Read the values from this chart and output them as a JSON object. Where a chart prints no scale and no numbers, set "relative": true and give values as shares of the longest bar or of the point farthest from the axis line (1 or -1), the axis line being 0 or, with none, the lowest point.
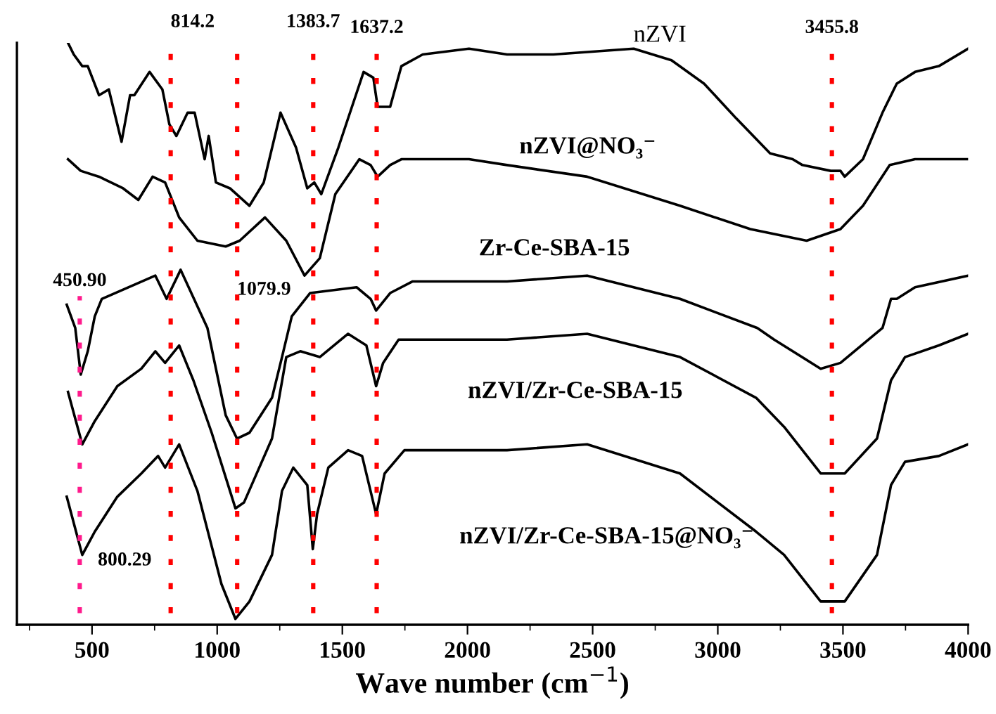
{
  "chart_data": {
    "type": "line",
    "relative": true,
    "xlabel": "Wave number (cm$^{−1}$)",
    "xlim": [
      200,
      4000
    ],
    "xticks": [
      {
        "value": 250,
        "label": null
      },
      500,
      {
        "value": 750,
        "label": null
      },
      1000,
      {
        "value": 1250,
        "label": null
      },
      1500,
      {
        "value": 1750,
        "label": null
      },
      2000,
      {
        "value": 2250,
        "label": null
      },
      2500,
      {
        "value": 2750,
        "label": null
      },
      3000,
      {
        "value": 3250,
        "label": null
      },
      3500,
      {
        "value": 3750,
        "label": null
      },
      4000
    ],
    "series": [
      {
        "name": "nZVI",
        "color": "#000000",
        "x": [
          404,
          427,
          461,
          483,
          528,
          567,
          618,
          652,
          669,
          730,
          781,
          809,
          837,
          882,
          910,
          950,
          966,
          995,
          1051,
          1129,
          1186,
          1253,
          1315,
          1360,
          1388,
          1416,
          1484,
          1585,
          1624,
          1641,
          1691,
          1736,
          1821,
          2006,
          2158,
          2343,
          2664,
          2815,
          2945,
          3074,
          3209,
          3299,
          3338,
          3451,
          3490,
          3507,
          3580,
          3658,
          3715,
          3788,
          3883,
          4000
        ],
        "values": [
          1.0,
          0.98,
          0.96,
          0.96,
          0.91,
          0.92,
          0.83,
          0.91,
          0.91,
          0.95,
          0.92,
          0.86,
          0.84,
          0.88,
          0.88,
          0.8,
          0.84,
          0.76,
          0.75,
          0.72,
          0.76,
          0.88,
          0.82,
          0.75,
          0.76,
          0.74,
          0.82,
          0.95,
          0.94,
          0.89,
          0.89,
          0.96,
          0.98,
          0.99,
          0.98,
          0.98,
          0.99,
          0.97,
          0.93,
          0.87,
          0.81,
          0.8,
          0.79,
          0.78,
          0.78,
          0.77,
          0.8,
          0.88,
          0.93,
          0.95,
          0.96,
          0.99
        ]
      },
      {
        "name": "nZVI@NO₃⁻",
        "color": "#000000",
        "x": [
          404,
          455,
          528,
          624,
          685,
          742,
          792,
          848,
          921,
          1034,
          1090,
          1191,
          1276,
          1349,
          1410,
          1472,
          1568,
          1613,
          1641,
          1691,
          1736,
          2006,
          2158,
          2478,
          2849,
          3130,
          3355,
          3490,
          3580,
          3687,
          3788,
          4000
        ],
        "values": [
          0.8,
          0.78,
          0.77,
          0.75,
          0.73,
          0.77,
          0.76,
          0.7,
          0.66,
          0.65,
          0.66,
          0.7,
          0.66,
          0.6,
          0.63,
          0.74,
          0.8,
          0.79,
          0.77,
          0.79,
          0.8,
          0.8,
          0.79,
          0.77,
          0.72,
          0.68,
          0.66,
          0.68,
          0.72,
          0.79,
          0.8,
          0.8
        ]
      },
      {
        "name": "Zr-Ce-SBA-15",
        "color": "#000000",
        "x": [
          399,
          433,
          455,
          483,
          511,
          539,
          753,
          798,
          854,
          961,
          995,
          1034,
          1079,
          1129,
          1219,
          1259,
          1298,
          1371,
          1557,
          1613,
          1635,
          1691,
          1781,
          2158,
          2478,
          2849,
          3158,
          3225,
          3411,
          3490,
          3658,
          3692,
          3715,
          3788,
          4000
        ],
        "values": [
          0.55,
          0.51,
          0.43,
          0.47,
          0.53,
          0.56,
          0.6,
          0.56,
          0.61,
          0.51,
          0.44,
          0.36,
          0.32,
          0.33,
          0.39,
          0.46,
          0.53,
          0.57,
          0.58,
          0.56,
          0.54,
          0.57,
          0.59,
          0.59,
          0.6,
          0.56,
          0.51,
          0.49,
          0.44,
          0.45,
          0.51,
          0.56,
          0.56,
          0.58,
          0.6
        ]
      },
      {
        "name": "nZVI/Zr-Ce-SBA-15",
        "color": "#000000",
        "x": [
          404,
          461,
          511,
          601,
          697,
          753,
          792,
          848,
          905,
          978,
          1073,
          1107,
          1219,
          1276,
          1332,
          1410,
          1523,
          1596,
          1635,
          1663,
          1725,
          2158,
          2478,
          2849,
          3153,
          3265,
          3411,
          3507,
          3636,
          3692,
          3748,
          3883,
          4000
        ],
        "values": [
          0.4,
          0.31,
          0.35,
          0.41,
          0.44,
          0.47,
          0.45,
          0.48,
          0.42,
          0.33,
          0.2,
          0.21,
          0.32,
          0.46,
          0.47,
          0.46,
          0.5,
          0.48,
          0.41,
          0.45,
          0.49,
          0.49,
          0.5,
          0.46,
          0.39,
          0.34,
          0.26,
          0.26,
          0.32,
          0.42,
          0.46,
          0.48,
          0.5
        ]
      },
      {
        "name": "nZVI/Zr-Ce-SBA-15@NO₃⁻",
        "color": "#000000",
        "x": [
          399,
          461,
          511,
          601,
          697,
          764,
          792,
          848,
          921,
          1017,
          1073,
          1129,
          1219,
          1259,
          1304,
          1360,
          1382,
          1399,
          1444,
          1523,
          1579,
          1635,
          1669,
          1748,
          2158,
          2478,
          2849,
          3153,
          3265,
          3411,
          3507,
          3636,
          3692,
          3748,
          3883,
          4000
        ],
        "values": [
          0.22,
          0.12,
          0.16,
          0.22,
          0.26,
          0.29,
          0.27,
          0.31,
          0.23,
          0.07,
          0.01,
          0.04,
          0.12,
          0.23,
          0.27,
          0.24,
          0.13,
          0.19,
          0.27,
          0.3,
          0.29,
          0.19,
          0.26,
          0.3,
          0.3,
          0.31,
          0.26,
          0.16,
          0.12,
          0.04,
          0.04,
          0.12,
          0.24,
          0.28,
          0.29,
          0.31
        ]
      }
    ],
    "ref_lines": [
      {
        "axis": "x",
        "value": 450.9,
        "label": "450.90",
        "color": "#ff1a8c",
        "line_style": "dotted"
      },
      {
        "axis": "x",
        "value": 814.2,
        "label": "814.2",
        "color": "#ff0000",
        "line_style": "dotted"
      },
      {
        "axis": "x",
        "value": 1079.9,
        "label": "1079.9",
        "color": "#ff0000",
        "line_style": "dotted"
      },
      {
        "axis": "x",
        "value": 1383.7,
        "label": "1383.7",
        "color": "#ff0000",
        "line_style": "dotted"
      },
      {
        "axis": "x",
        "value": 1637.2,
        "label": "1637.2",
        "color": "#ff0000",
        "line_style": "dotted"
      },
      {
        "axis": "x",
        "value": 3455.8,
        "label": "3455.8",
        "color": "#ff0000",
        "line_style": "dotted"
      }
    ],
    "annotations": [
      {
        "text": "800.29",
        "x": 800.29,
        "y": 0.11
      }
    ]
  }
}
